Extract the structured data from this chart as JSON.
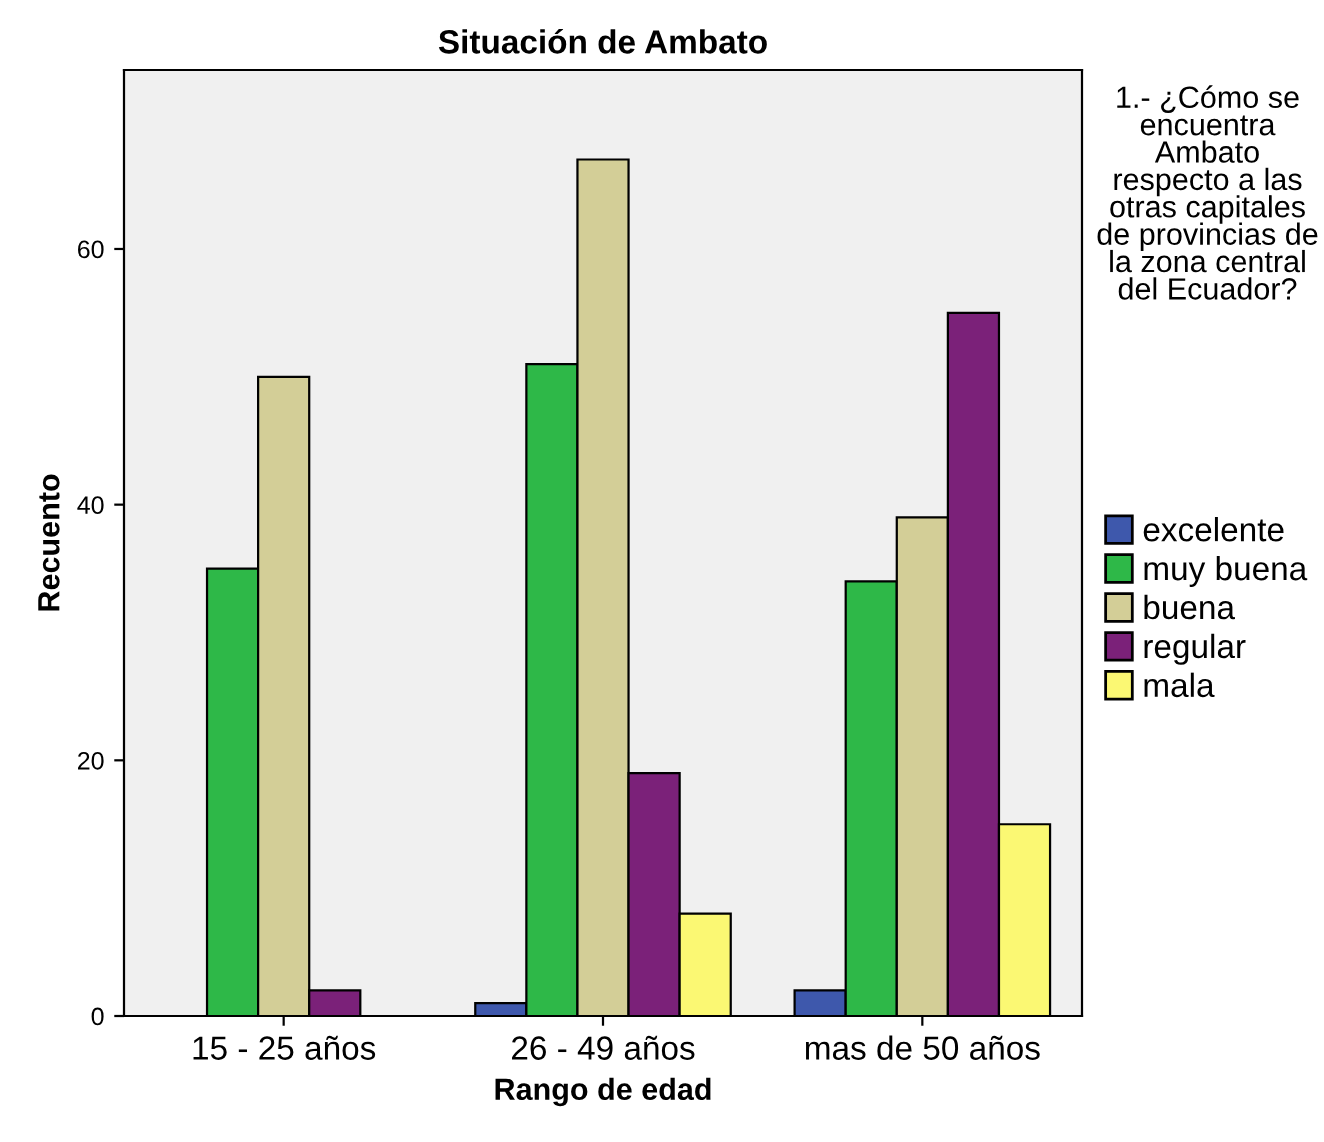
{
  "chart_data": {
    "type": "bar",
    "title": "Situación de Ambato",
    "xlabel": "Rango de edad",
    "ylabel": "Recuento",
    "legend_title": "1.- ¿Cómo se encuentra Ambato respecto a las otras capitales de provincias de la zona central del Ecuador?",
    "categories": [
      "15 - 25 años",
      "26 - 49 años",
      "mas de 50 años"
    ],
    "series": [
      {
        "name": "excelente",
        "color": "#3e58ac",
        "values": [
          null,
          1,
          2
        ]
      },
      {
        "name": "muy buena",
        "color": "#2eb848",
        "values": [
          35,
          51,
          34
        ]
      },
      {
        "name": "buena",
        "color": "#d3ce97",
        "values": [
          50,
          67,
          39
        ]
      },
      {
        "name": "regular",
        "color": "#7b2179",
        "values": [
          2,
          19,
          55
        ]
      },
      {
        "name": "mala",
        "color": "#fbf873",
        "values": [
          null,
          8,
          15
        ]
      }
    ],
    "ylim": [
      0,
      74
    ],
    "yticks": [
      0,
      20,
      40,
      60
    ],
    "grid": false,
    "legend": "right"
  }
}
